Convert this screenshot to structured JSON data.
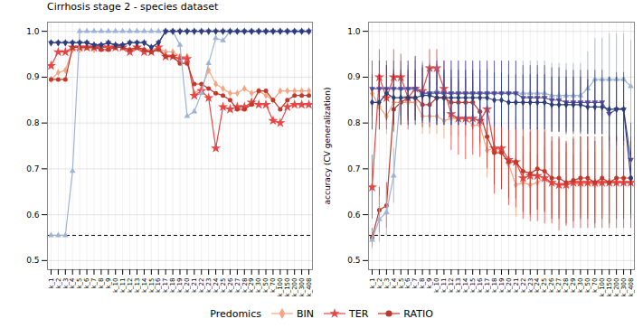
{
  "chart_data": [
    {
      "type": "line",
      "title": "Cirrhosis stage 2 - species dataset",
      "categories": [
        "k_1",
        "k_2",
        "k_3",
        "k_4",
        "k_5",
        "k_6",
        "k_7",
        "k_8",
        "k_9",
        "k_10",
        "k_11",
        "k_12",
        "k_13",
        "k_14",
        "k_15",
        "k_16",
        "k_17",
        "k_18",
        "k_19",
        "k_20",
        "k_21",
        "k_22",
        "k_23",
        "k_24",
        "k_25",
        "k_26",
        "k_27",
        "k_28",
        "k_29",
        "k_30",
        "k_50",
        "k_70",
        "k_100",
        "k_150",
        "k_200",
        "k_300",
        "k_408"
      ],
      "ylim": [
        0.48,
        1.02
      ],
      "yticks": [
        0.5,
        0.6,
        0.7,
        0.8,
        0.9,
        {
          "value": 1,
          "label": "1.0"
        }
      ],
      "grid": true,
      "reference_line": 0.555,
      "legend": "bottom",
      "legend_title": "Predomics",
      "series": [
        {
          "name": "BIN",
          "color": "#F4A582",
          "marker": "diamond",
          "values": [
            0.895,
            0.91,
            0.915,
            0.96,
            0.96,
            0.965,
            0.96,
            0.965,
            0.965,
            0.965,
            0.965,
            0.96,
            0.965,
            0.96,
            0.96,
            0.965,
            0.955,
            0.955,
            0.945,
            0.945,
            0.865,
            0.875,
            0.915,
            0.885,
            0.875,
            0.865,
            0.865,
            0.875,
            0.865,
            0.87,
            0.86,
            0.85,
            0.87,
            0.87,
            0.87,
            0.87,
            0.87
          ]
        },
        {
          "name": "TER",
          "color": "#E84545",
          "marker": "star",
          "values": [
            0.925,
            0.955,
            0.955,
            0.965,
            0.965,
            0.965,
            0.965,
            0.965,
            0.965,
            0.965,
            0.965,
            0.955,
            0.965,
            0.955,
            0.955,
            0.965,
            0.945,
            0.945,
            0.94,
            0.94,
            0.86,
            0.87,
            0.855,
            0.745,
            0.835,
            0.83,
            0.835,
            0.835,
            0.845,
            0.84,
            0.84,
            0.805,
            0.8,
            0.835,
            0.84,
            0.84,
            0.84
          ]
        },
        {
          "name": "RATIO",
          "color": "#C0392B",
          "marker": "circle",
          "values": [
            0.895,
            0.895,
            0.895,
            0.965,
            0.965,
            0.965,
            0.965,
            0.96,
            0.96,
            0.965,
            0.965,
            0.96,
            0.965,
            0.96,
            0.955,
            0.96,
            0.945,
            0.945,
            0.93,
            0.93,
            0.885,
            0.885,
            0.875,
            0.865,
            0.86,
            0.85,
            0.83,
            0.83,
            0.84,
            0.87,
            0.87,
            0.85,
            0.83,
            0.85,
            0.86,
            0.86,
            0.86
          ]
        },
        {
          "color": "#9EB4D4",
          "marker": "triangle-up",
          "values": [
            0.555,
            0.555,
            0.555,
            0.695,
            1.0,
            1.0,
            1.0,
            1.0,
            1.0,
            1.0,
            1.0,
            1.0,
            1.0,
            1.0,
            1.0,
            1.0,
            1.0,
            1.0,
            0.97,
            0.815,
            0.825,
            0.865,
            0.93,
            0.985,
            0.98,
            1.0,
            1.0,
            1.0,
            1.0,
            1.0,
            1.0,
            1.0,
            1.0,
            1.0,
            1.0,
            1.0,
            1.0
          ]
        },
        {
          "color": "#5A4DA0",
          "marker": "triangle-down",
          "values": [
            0.975,
            0.975,
            0.975,
            0.975,
            0.975,
            0.975,
            0.97,
            0.97,
            0.975,
            0.97,
            0.97,
            0.975,
            0.975,
            0.975,
            0.965,
            0.975,
            1.0,
            1.0,
            1.0,
            1.0,
            1.0,
            1.0,
            1.0,
            1.0,
            1.0,
            1.0,
            1.0,
            1.0,
            1.0,
            1.0,
            1.0,
            1.0,
            1.0,
            1.0,
            1.0,
            1.0,
            1.0
          ]
        },
        {
          "color": "#2C3E7A",
          "marker": "diamond",
          "values": [
            0.975,
            0.975,
            0.975,
            0.975,
            0.975,
            0.975,
            0.97,
            0.97,
            0.975,
            0.97,
            0.97,
            0.975,
            0.975,
            0.975,
            0.965,
            0.975,
            1.0,
            1.0,
            1.0,
            1.0,
            1.0,
            1.0,
            1.0,
            1.0,
            1.0,
            1.0,
            1.0,
            1.0,
            1.0,
            1.0,
            1.0,
            1.0,
            1.0,
            1.0,
            1.0,
            1.0,
            1.0
          ]
        }
      ]
    },
    {
      "type": "line",
      "y_label": "accuracy (CV generalization)",
      "categories": [
        "k_1",
        "k_2",
        "k_3",
        "k_4",
        "k_5",
        "k_6",
        "k_7",
        "k_8",
        "k_9",
        "k_10",
        "k_11",
        "k_12",
        "k_13",
        "k_14",
        "k_15",
        "k_16",
        "k_17",
        "k_18",
        "k_19",
        "k_20",
        "k_21",
        "k_22",
        "k_23",
        "k_24",
        "k_25",
        "k_26",
        "k_27",
        "k_28",
        "k_29",
        "k_30",
        "k_50",
        "k_70",
        "k_100",
        "k_150",
        "k_200",
        "k_300",
        "k_408"
      ],
      "ylim": [
        0.48,
        1.02
      ],
      "yticks": [
        0.5,
        0.6,
        0.7,
        0.8,
        0.9,
        {
          "value": 1,
          "label": "1.0"
        }
      ],
      "grid": true,
      "reference_line": 0.555,
      "series": [
        {
          "name": "BIN",
          "color": "#F4A582",
          "marker": "diamond",
          "values": [
            0.865,
            0.835,
            0.815,
            0.845,
            0.845,
            0.845,
            0.845,
            0.815,
            0.815,
            0.815,
            0.805,
            0.81,
            0.81,
            0.81,
            0.795,
            0.795,
            0.74,
            0.745,
            0.74,
            0.71,
            0.665,
            0.67,
            0.665,
            0.67,
            0.68,
            0.67,
            0.665,
            0.665,
            0.67,
            0.665,
            0.67,
            0.665,
            0.67,
            0.67,
            0.67,
            0.67,
            0.67
          ],
          "errors": [
            0.04,
            0.05,
            0.04,
            0.04,
            0.04,
            0.04,
            0.04,
            0.04,
            0.04,
            0.04,
            0.04,
            0.04,
            0.04,
            0.04,
            0.05,
            0.05,
            0.06,
            0.06,
            0.06,
            0.07,
            0.07,
            0.06,
            0.07,
            0.06,
            0.07,
            0.07,
            0.07,
            0.07,
            0.06,
            0.07,
            0.07,
            0.07,
            0.07,
            0.07,
            0.07,
            0.07,
            0.07
          ]
        },
        {
          "name": "TER",
          "color": "#E84545",
          "marker": "star",
          "values": [
            0.66,
            0.9,
            0.855,
            0.9,
            0.9,
            0.855,
            0.875,
            0.87,
            0.92,
            0.92,
            0.875,
            0.82,
            0.81,
            0.81,
            0.81,
            0.805,
            0.83,
            0.745,
            0.745,
            0.72,
            0.715,
            0.68,
            0.685,
            0.685,
            0.68,
            0.67,
            0.665,
            0.665,
            0.67,
            0.67,
            0.67,
            0.67,
            0.67,
            0.67,
            0.67,
            0.67,
            0.67
          ],
          "errors": [
            0.07,
            0.06,
            0.07,
            0.06,
            0.05,
            0.07,
            0.06,
            0.06,
            0.04,
            0.04,
            0.06,
            0.08,
            0.08,
            0.09,
            0.08,
            0.08,
            0.09,
            0.1,
            0.09,
            0.1,
            0.1,
            0.09,
            0.1,
            0.1,
            0.1,
            0.09,
            0.1,
            0.09,
            0.1,
            0.1,
            0.1,
            0.1,
            0.1,
            0.1,
            0.1,
            0.1,
            0.1
          ]
        },
        {
          "name": "RATIO",
          "color": "#C0392B",
          "marker": "circle",
          "values": [
            0.55,
            0.61,
            0.62,
            0.83,
            0.845,
            0.855,
            0.855,
            0.84,
            0.84,
            0.855,
            0.855,
            0.845,
            0.845,
            0.845,
            0.845,
            0.825,
            0.77,
            0.735,
            0.735,
            0.715,
            0.715,
            0.695,
            0.69,
            0.7,
            0.695,
            0.68,
            0.68,
            0.67,
            0.675,
            0.68,
            0.68,
            0.67,
            0.68,
            0.67,
            0.68,
            0.68,
            0.68
          ],
          "errors": [
            0.02,
            0.05,
            0.05,
            0.05,
            0.05,
            0.05,
            0.05,
            0.05,
            0.05,
            0.05,
            0.05,
            0.05,
            0.05,
            0.05,
            0.06,
            0.07,
            0.07,
            0.07,
            0.08,
            0.08,
            0.08,
            0.09,
            0.09,
            0.09,
            0.09,
            0.09,
            0.09,
            0.09,
            0.09,
            0.09,
            0.09,
            0.09,
            0.09,
            0.09,
            0.09,
            0.09,
            0.09
          ]
        },
        {
          "color": "#9EB4D4",
          "marker": "triangle-up",
          "values": [
            0.545,
            0.59,
            0.605,
            0.685,
            0.875,
            0.875,
            0.875,
            0.865,
            0.865,
            0.87,
            0.865,
            0.865,
            0.865,
            0.865,
            0.865,
            0.865,
            0.865,
            0.865,
            0.865,
            0.865,
            0.865,
            0.865,
            0.865,
            0.865,
            0.865,
            0.86,
            0.86,
            0.86,
            0.86,
            0.86,
            0.875,
            0.895,
            0.895,
            0.895,
            0.895,
            0.895,
            0.88
          ],
          "errors": [
            0.02,
            0.05,
            0.05,
            0.06,
            0.06,
            0.06,
            0.07,
            0.07,
            0.07,
            0.07,
            0.07,
            0.07,
            0.07,
            0.07,
            0.07,
            0.07,
            0.07,
            0.07,
            0.07,
            0.07,
            0.07,
            0.07,
            0.07,
            0.07,
            0.07,
            0.07,
            0.07,
            0.07,
            0.07,
            0.07,
            0.08,
            0.09,
            0.09,
            0.1,
            0.1,
            0.1,
            0.1
          ]
        },
        {
          "color": "#5A4DA0",
          "marker": "triangle-down",
          "values": [
            0.875,
            0.875,
            0.875,
            0.875,
            0.875,
            0.875,
            0.875,
            0.865,
            0.865,
            0.865,
            0.865,
            0.865,
            0.865,
            0.865,
            0.865,
            0.865,
            0.865,
            0.865,
            0.865,
            0.865,
            0.865,
            0.855,
            0.855,
            0.855,
            0.855,
            0.85,
            0.85,
            0.845,
            0.845,
            0.845,
            0.845,
            0.845,
            0.845,
            0.82,
            0.83,
            0.83,
            0.72
          ],
          "errors": [
            0.06,
            0.06,
            0.06,
            0.06,
            0.06,
            0.06,
            0.07,
            0.06,
            0.06,
            0.07,
            0.07,
            0.07,
            0.07,
            0.07,
            0.07,
            0.07,
            0.07,
            0.07,
            0.07,
            0.07,
            0.07,
            0.07,
            0.07,
            0.07,
            0.07,
            0.07,
            0.07,
            0.07,
            0.07,
            0.07,
            0.07,
            0.07,
            0.07,
            0.08,
            0.08,
            0.08,
            0.08
          ]
        },
        {
          "color": "#2C3E7A",
          "marker": "diamond",
          "values": [
            0.845,
            0.845,
            0.865,
            0.855,
            0.855,
            0.855,
            0.855,
            0.86,
            0.86,
            0.855,
            0.855,
            0.855,
            0.855,
            0.855,
            0.855,
            0.855,
            0.855,
            0.85,
            0.85,
            0.845,
            0.845,
            0.845,
            0.845,
            0.845,
            0.845,
            0.84,
            0.84,
            0.84,
            0.84,
            0.84,
            0.835,
            0.835,
            0.835,
            0.83,
            0.83,
            0.83,
            0.68
          ],
          "errors": [
            0.06,
            0.06,
            0.06,
            0.06,
            0.06,
            0.06,
            0.06,
            0.06,
            0.06,
            0.06,
            0.06,
            0.06,
            0.06,
            0.06,
            0.06,
            0.06,
            0.06,
            0.06,
            0.06,
            0.06,
            0.06,
            0.06,
            0.06,
            0.06,
            0.06,
            0.06,
            0.06,
            0.06,
            0.06,
            0.06,
            0.06,
            0.06,
            0.06,
            0.07,
            0.07,
            0.07,
            0.08
          ]
        }
      ]
    }
  ]
}
